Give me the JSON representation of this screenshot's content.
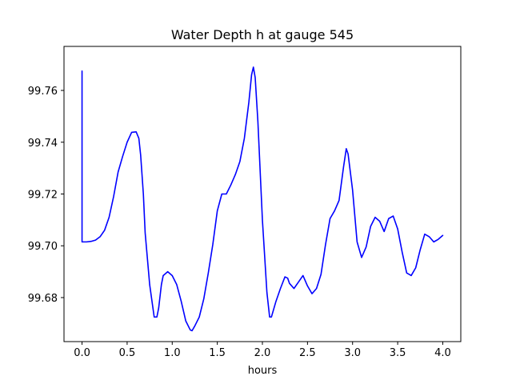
{
  "chart_data": {
    "type": "line",
    "title": "Water Depth h at gauge 545",
    "xlabel": "hours",
    "ylabel": "",
    "xlim": [
      -0.2,
      4.2
    ],
    "ylim": [
      99.663,
      99.777
    ],
    "xticks": [
      0.0,
      0.5,
      1.0,
      1.5,
      2.0,
      2.5,
      3.0,
      3.5,
      4.0
    ],
    "xtick_labels": [
      "0.0",
      "0.5",
      "1.0",
      "1.5",
      "2.0",
      "2.5",
      "3.0",
      "3.5",
      "4.0"
    ],
    "yticks": [
      99.68,
      99.7,
      99.72,
      99.74,
      99.76
    ],
    "ytick_labels": [
      "99.68",
      "99.70",
      "99.72",
      "99.74",
      "99.76"
    ],
    "grid": false,
    "line_color": "#0000ff",
    "series": [
      {
        "x": [
          0.0,
          0.0,
          0.001,
          0.05,
          0.1,
          0.15,
          0.2,
          0.25,
          0.3,
          0.35,
          0.4,
          0.45,
          0.5,
          0.55,
          0.6,
          0.63,
          0.65,
          0.68,
          0.7,
          0.75,
          0.8,
          0.83,
          0.85,
          0.88,
          0.9,
          0.95,
          1.0,
          1.05,
          1.1,
          1.15,
          1.2,
          1.22,
          1.25,
          1.3,
          1.35,
          1.4,
          1.45,
          1.5,
          1.55,
          1.6,
          1.65,
          1.7,
          1.75,
          1.8,
          1.85,
          1.88,
          1.9,
          1.92,
          1.95,
          2.0,
          2.05,
          2.08,
          2.1,
          2.15,
          2.2,
          2.25,
          2.28,
          2.3,
          2.35,
          2.4,
          2.45,
          2.5,
          2.55,
          2.6,
          2.65,
          2.7,
          2.75,
          2.8,
          2.85,
          2.9,
          2.93,
          2.95,
          3.0,
          3.05,
          3.1,
          3.15,
          3.2,
          3.25,
          3.3,
          3.35,
          3.4,
          3.45,
          3.5,
          3.55,
          3.6,
          3.65,
          3.7,
          3.75,
          3.8,
          3.85,
          3.9,
          3.95,
          4.0
        ],
        "y": [
          99.7675,
          99.7015,
          99.7015,
          99.7015,
          99.7017,
          99.7022,
          99.7035,
          99.706,
          99.711,
          99.719,
          99.7285,
          99.7345,
          99.74,
          99.7438,
          99.744,
          99.7415,
          99.735,
          99.72,
          99.705,
          99.685,
          99.6725,
          99.6725,
          99.676,
          99.685,
          99.6885,
          99.69,
          99.6885,
          99.685,
          99.6785,
          99.671,
          99.6675,
          99.6672,
          99.669,
          99.6725,
          99.6795,
          99.6895,
          99.7005,
          99.7135,
          99.72,
          99.72,
          99.7235,
          99.7275,
          99.7325,
          99.7415,
          99.7555,
          99.766,
          99.769,
          99.765,
          99.748,
          99.71,
          99.682,
          99.6725,
          99.6725,
          99.6785,
          99.6835,
          99.688,
          99.6875,
          99.6855,
          99.6835,
          99.686,
          99.6885,
          99.6845,
          99.6815,
          99.6835,
          99.689,
          99.7005,
          99.7105,
          99.7135,
          99.7175,
          99.7305,
          99.7375,
          99.7355,
          99.7215,
          99.7015,
          99.6955,
          99.6995,
          99.7075,
          99.711,
          99.7095,
          99.7055,
          99.7105,
          99.7115,
          99.7065,
          99.6975,
          99.6895,
          99.6885,
          99.6915,
          99.6985,
          99.7045,
          99.7035,
          99.7015,
          99.7025,
          99.704
        ]
      }
    ]
  }
}
